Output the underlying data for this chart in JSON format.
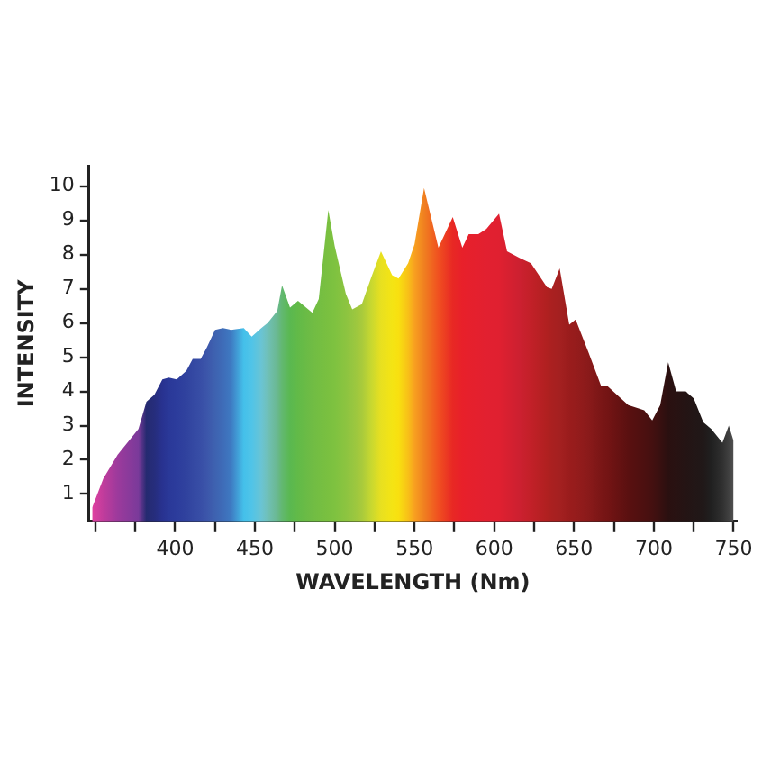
{
  "chart_data": {
    "type": "area",
    "xlabel": "WAVELENGTH (Nm)",
    "ylabel": "INTENSITY",
    "xlim": [
      346,
      752
    ],
    "ylim": [
      0.2,
      10.6
    ],
    "xticks": [
      {
        "value": 350,
        "label": null
      },
      {
        "value": 375,
        "label": null
      },
      400,
      {
        "value": 425,
        "label": null
      },
      450,
      {
        "value": 475,
        "label": null
      },
      500,
      {
        "value": 525,
        "label": null
      },
      550,
      {
        "value": 575,
        "label": null
      },
      600,
      {
        "value": 625,
        "label": null
      },
      650,
      {
        "value": 675,
        "label": null
      },
      700,
      {
        "value": 725,
        "label": null
      },
      750
    ],
    "yticks": [
      1,
      2,
      3,
      4,
      5,
      6,
      7,
      8,
      9,
      10
    ],
    "grid": false,
    "legend": false,
    "series": [
      {
        "x": [
          348,
          355,
          364,
          377,
          382,
          387,
          392,
          396,
          401,
          407,
          411,
          416,
          420,
          425,
          430,
          435,
          443,
          448,
          454,
          458,
          464,
          467,
          472,
          477,
          486,
          490,
          496,
          500,
          507,
          511,
          517,
          523,
          529,
          536,
          540,
          546,
          550,
          556,
          565,
          574,
          580,
          584,
          590,
          595,
          603,
          608,
          616,
          623,
          633,
          636,
          641,
          647,
          651,
          659,
          667,
          671,
          684,
          694,
          699,
          704,
          709,
          714,
          720,
          725,
          731,
          736,
          743,
          747,
          750
        ],
        "values": [
          0.6,
          1.45,
          2.15,
          2.9,
          3.7,
          3.9,
          4.35,
          4.4,
          4.35,
          4.6,
          4.95,
          4.95,
          5.3,
          5.8,
          5.85,
          5.8,
          5.85,
          5.6,
          5.85,
          6.0,
          6.35,
          7.1,
          6.45,
          6.65,
          6.3,
          6.7,
          9.3,
          8.25,
          6.85,
          6.4,
          6.55,
          7.35,
          8.1,
          7.4,
          7.3,
          7.75,
          8.3,
          9.95,
          8.2,
          9.1,
          8.2,
          8.6,
          8.6,
          8.75,
          9.2,
          8.1,
          7.9,
          7.75,
          7.05,
          7.0,
          7.6,
          5.95,
          6.1,
          5.15,
          4.15,
          4.15,
          3.6,
          3.45,
          3.15,
          3.6,
          4.85,
          4.0,
          4.0,
          3.8,
          3.1,
          2.9,
          2.5,
          3.0,
          2.55
        ],
        "colors": [
          "#e040a0",
          "#c03c9c",
          "#9c3a9c",
          "#7a3a9a",
          "#252a70",
          "#262d7c",
          "#283290",
          "#2a3898",
          "#2c3c9c",
          "#30429e",
          "#3448a2",
          "#384ea6",
          "#3c56aa",
          "#3e62b0",
          "#3e6cb8",
          "#3e7ac2",
          "#44c0ea",
          "#50c4e8",
          "#6ac4d4",
          "#70c0b8",
          "#6ab890",
          "#62b870",
          "#5ab850",
          "#62ba48",
          "#70bc44",
          "#74be42",
          "#7ac040",
          "#7ec240",
          "#8cc440",
          "#96c640",
          "#a8ca3c",
          "#c8d830",
          "#e8e020",
          "#f4e414",
          "#f8e010",
          "#f8c018",
          "#f8a020",
          "#f08020",
          "#f05020",
          "#e82824",
          "#e8202a",
          "#e6202c",
          "#e4202e",
          "#e22030",
          "#e02030",
          "#d82030",
          "#cc2030",
          "#c22028",
          "#b02020",
          "#aa2020",
          "#a42020",
          "#9a1c1c",
          "#961c1c",
          "#8a1a1a",
          "#7a1616",
          "#741414",
          "#5a1010",
          "#4c1010",
          "#441010",
          "#381010",
          "#2a1010",
          "#281212",
          "#241414",
          "#221616",
          "#201818",
          "#202020",
          "#303030",
          "#404040",
          "#505050"
        ]
      }
    ]
  }
}
